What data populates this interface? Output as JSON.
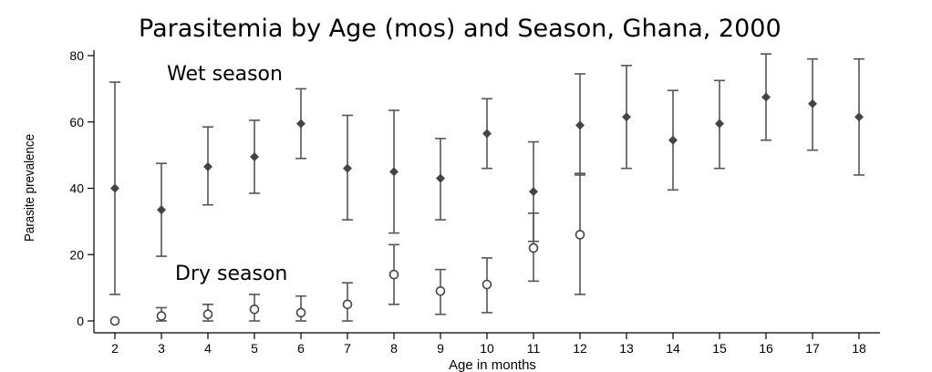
{
  "chart_data": {
    "type": "scatter",
    "title": "Parasitemia by Age (mos) and Season, Ghana, 2000",
    "xlabel": "Age in months",
    "ylabel": "Parasite prevalence",
    "xlim": [
      2,
      18
    ],
    "ylim": [
      0,
      80
    ],
    "x_ticks": [
      "2",
      "3",
      "4",
      "5",
      "6",
      "7",
      "8",
      "9",
      "10",
      "11",
      "12",
      "13",
      "14",
      "15",
      "16",
      "17",
      "18"
    ],
    "y_ticks": [
      "0",
      "20",
      "40",
      "60",
      "80"
    ],
    "annotations": {
      "wet": "Wet season",
      "dry": "Dry season"
    },
    "series": [
      {
        "marker": "filled-diamond",
        "points": [
          {
            "x": 2,
            "y": 40,
            "lo": 8,
            "hi": 72
          },
          {
            "x": 3,
            "y": 33.5,
            "lo": 19.5,
            "hi": 47.5
          },
          {
            "x": 4,
            "y": 46.5,
            "lo": 35,
            "hi": 58.5
          },
          {
            "x": 5,
            "y": 49.5,
            "lo": 38.5,
            "hi": 60.5
          },
          {
            "x": 6,
            "y": 59.5,
            "lo": 49,
            "hi": 70
          },
          {
            "x": 7,
            "y": 46,
            "lo": 30.5,
            "hi": 62
          },
          {
            "x": 8,
            "y": 45,
            "lo": 26.5,
            "hi": 63.5
          },
          {
            "x": 9,
            "y": 43,
            "lo": 30.5,
            "hi": 55
          },
          {
            "x": 10,
            "y": 56.5,
            "lo": 46,
            "hi": 67
          },
          {
            "x": 11,
            "y": 39,
            "lo": 24,
            "hi": 54
          },
          {
            "x": 12,
            "y": 59,
            "lo": 44,
            "hi": 74.5
          },
          {
            "x": 13,
            "y": 61.5,
            "lo": 46,
            "hi": 77
          },
          {
            "x": 14,
            "y": 54.5,
            "lo": 39.5,
            "hi": 69.5
          },
          {
            "x": 15,
            "y": 59.5,
            "lo": 46,
            "hi": 72.5
          },
          {
            "x": 16,
            "y": 67.5,
            "lo": 54.5,
            "hi": 80.5
          },
          {
            "x": 17,
            "y": 65.5,
            "lo": 51.5,
            "hi": 79
          },
          {
            "x": 18,
            "y": 61.5,
            "lo": 44,
            "hi": 79
          }
        ]
      },
      {
        "marker": "open-circle",
        "points": [
          {
            "x": 2,
            "y": 0,
            "lo": 0,
            "hi": 0
          },
          {
            "x": 3,
            "y": 1.5,
            "lo": 0,
            "hi": 4
          },
          {
            "x": 4,
            "y": 2,
            "lo": 0,
            "hi": 5
          },
          {
            "x": 5,
            "y": 3.5,
            "lo": 0,
            "hi": 8
          },
          {
            "x": 6,
            "y": 2.5,
            "lo": 0,
            "hi": 7.5
          },
          {
            "x": 7,
            "y": 5,
            "lo": 0,
            "hi": 11.5
          },
          {
            "x": 8,
            "y": 14,
            "lo": 5,
            "hi": 23
          },
          {
            "x": 9,
            "y": 9,
            "lo": 2,
            "hi": 15.5
          },
          {
            "x": 10,
            "y": 11,
            "lo": 2.5,
            "hi": 19
          },
          {
            "x": 11,
            "y": 22,
            "lo": 12,
            "hi": 32.5
          },
          {
            "x": 12,
            "y": 26,
            "lo": 8,
            "hi": 44.5
          }
        ]
      }
    ]
  }
}
